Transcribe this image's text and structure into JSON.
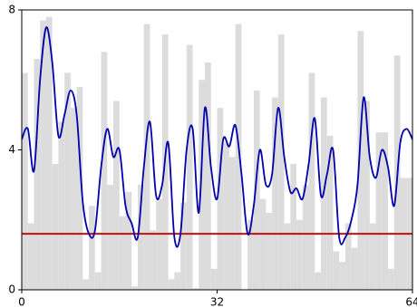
{
  "chart_data": {
    "type": "bar",
    "xlim": [
      0,
      64
    ],
    "ylim": [
      0,
      8
    ],
    "xticks": [
      0,
      32,
      64
    ],
    "yticks": [
      0,
      4,
      8
    ],
    "series": [
      {
        "type": "bar",
        "color": "#dcdcdc",
        "bins": [
          0,
          1,
          2,
          3,
          4,
          5,
          6,
          7,
          8,
          9,
          10,
          11,
          12,
          13,
          14,
          15,
          16,
          17,
          18,
          19,
          20,
          21,
          22,
          23,
          24,
          25,
          26,
          27,
          28,
          29,
          30,
          31,
          32,
          33,
          34,
          35,
          36,
          37,
          38,
          39,
          40,
          41,
          42,
          43,
          44,
          45,
          46,
          47,
          48,
          49,
          50,
          51,
          52,
          53,
          54,
          55,
          56,
          57,
          58,
          59,
          60,
          61,
          62,
          63,
          64
        ],
        "values": [
          6.2,
          1.9,
          6.6,
          7.7,
          7.8,
          3.6,
          4.8,
          6.2,
          5.2,
          5.8,
          0.3,
          2.4,
          0.5,
          6.8,
          3.0,
          5.4,
          2.1,
          2.8,
          0.1,
          3.0,
          7.6,
          1.7,
          2.6,
          7.3,
          0.3,
          0.5,
          2.5,
          7.0,
          0.05,
          6.0,
          6.5,
          0.6,
          5.2,
          4.2,
          3.8,
          7.6,
          0,
          2.0,
          5.7,
          2.6,
          2.2,
          5.5,
          7.3,
          1.9,
          3.6,
          2.0,
          3.0,
          6.2,
          0.5,
          5.5,
          4.4,
          1.1,
          0.8,
          1.9,
          1.2,
          7.4,
          5.4,
          1.9,
          4.5,
          4.5,
          0.6,
          6.7,
          3.2,
          3.2
        ]
      },
      {
        "type": "line",
        "color": "#0000aa",
        "x": [
          0,
          1,
          2,
          3,
          4,
          5,
          6,
          7,
          8,
          9,
          10,
          11,
          12,
          13,
          14,
          15,
          16,
          17,
          18,
          19,
          20,
          21,
          22,
          23,
          24,
          25,
          26,
          27,
          28,
          29,
          30,
          31,
          32,
          33,
          34,
          35,
          36,
          37,
          38,
          39,
          40,
          41,
          42,
          43,
          44,
          45,
          46,
          47,
          48,
          49,
          50,
          51,
          52,
          53,
          54,
          55,
          56,
          57,
          58,
          59,
          60,
          61,
          62,
          63,
          64
        ],
        "values": [
          4.3,
          4.6,
          3.4,
          6.0,
          7.5,
          6.5,
          4.4,
          5.0,
          5.7,
          5.0,
          2.5,
          1.6,
          1.7,
          3.5,
          4.6,
          3.8,
          4.0,
          2.4,
          1.9,
          1.5,
          3.5,
          4.8,
          2.7,
          3.0,
          4.2,
          1.5,
          1.6,
          4.0,
          4.6,
          2.2,
          5.2,
          3.5,
          2.6,
          4.3,
          4.1,
          4.7,
          3.3,
          1.6,
          2.4,
          4.0,
          3.0,
          3.3,
          5.2,
          3.8,
          2.8,
          2.9,
          2.6,
          3.6,
          4.9,
          2.7,
          3.3,
          4.0,
          1.5,
          1.5,
          2.0,
          3.0,
          5.5,
          3.8,
          3.2,
          4.0,
          3.5,
          2.4,
          4.2,
          4.6,
          4.3
        ]
      }
    ],
    "hlines": [
      {
        "y": 1.6,
        "color": "#c00000"
      }
    ]
  }
}
